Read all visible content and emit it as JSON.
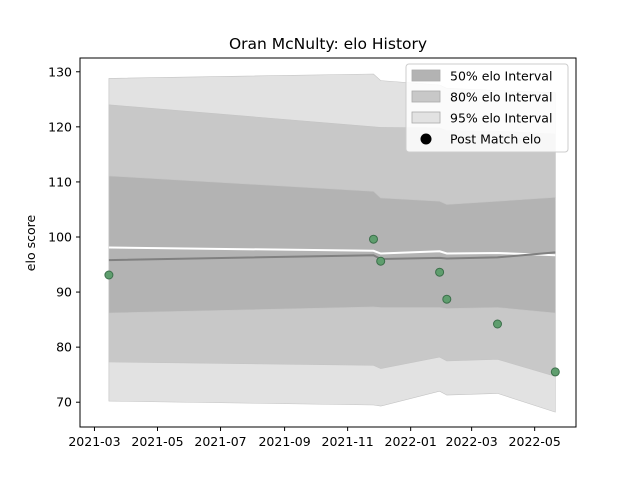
{
  "chart_data": {
    "type": "line",
    "title": "Oran McNulty: elo History",
    "xlabel": "",
    "ylabel": "elo score",
    "xlim": [
      "2021-02-15",
      "2022-06-10"
    ],
    "ylim": [
      65.5,
      132.5
    ],
    "x_ticks": [
      "2021-03",
      "2021-05",
      "2021-07",
      "2021-09",
      "2021-11",
      "2022-01",
      "2022-03",
      "2022-05"
    ],
    "y_ticks": [
      70,
      80,
      90,
      100,
      110,
      120,
      130
    ],
    "grid": false,
    "legend_position": "top-right",
    "legend": [
      {
        "label": "50% elo Interval",
        "kind": "band",
        "color": "#b3b3b3"
      },
      {
        "label": "80% elo Interval",
        "kind": "band",
        "color": "#c8c8c8"
      },
      {
        "label": "95% elo Interval",
        "kind": "band",
        "color": "#e2e2e2"
      },
      {
        "label": "Post Match elo",
        "kind": "marker",
        "color": "#000000"
      }
    ],
    "x": [
      "2021-03-15",
      "2021-11-26",
      "2021-12-03",
      "2022-01-29",
      "2022-02-05",
      "2022-03-26",
      "2022-05-21"
    ],
    "series": [
      {
        "name": "95% elo Interval",
        "type": "band",
        "color": "#e2e2e2",
        "lower": [
          70.2,
          69.5,
          69.3,
          72.0,
          71.3,
          71.6,
          68.2
        ],
        "upper": [
          128.8,
          129.6,
          128.4,
          127.6,
          127.0,
          126.6,
          126.2
        ]
      },
      {
        "name": "80% elo Interval",
        "type": "band",
        "color": "#c8c8c8",
        "lower": [
          77.3,
          76.7,
          76.1,
          78.2,
          77.5,
          77.8,
          74.7
        ],
        "upper": [
          124.0,
          120.0,
          119.9,
          119.8,
          119.3,
          119.2,
          118.7
        ]
      },
      {
        "name": "50% elo Interval",
        "type": "band",
        "color": "#b3b3b3",
        "lower": [
          86.2,
          87.3,
          87.2,
          87.2,
          87.0,
          87.2,
          86.2
        ],
        "upper": [
          111.1,
          108.3,
          107.1,
          106.5,
          105.9,
          106.5,
          107.2
        ]
      },
      {
        "name": "",
        "type": "line",
        "color": "#ffffff",
        "values": [
          98.1,
          97.5,
          97.0,
          97.4,
          97.0,
          97.1,
          96.7
        ]
      },
      {
        "name": "",
        "type": "line",
        "color": "#808080",
        "values": [
          95.8,
          96.7,
          96.0,
          96.2,
          96.1,
          96.3,
          97.2
        ]
      },
      {
        "name": "Post Match elo",
        "type": "scatter",
        "color": "#5f9e6e",
        "values": [
          93.1,
          99.6,
          95.6,
          93.6,
          88.7,
          84.2,
          75.5
        ]
      }
    ]
  }
}
